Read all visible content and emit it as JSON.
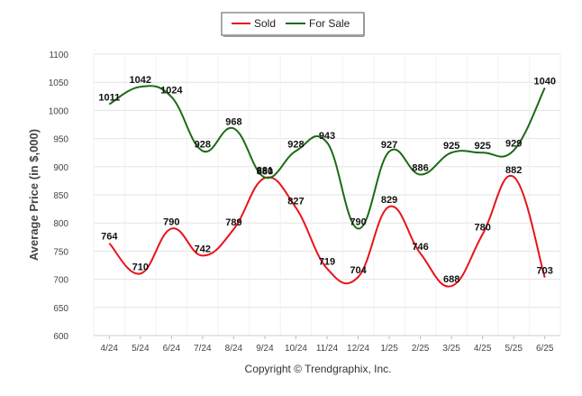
{
  "chart_data": {
    "type": "line",
    "title": "",
    "xlabel": "",
    "ylabel": "Average Price (in $,000)",
    "categories": [
      "4/24",
      "5/24",
      "6/24",
      "7/24",
      "8/24",
      "9/24",
      "10/24",
      "11/24",
      "12/24",
      "1/25",
      "2/25",
      "3/25",
      "4/25",
      "5/25",
      "6/25"
    ],
    "series": [
      {
        "name": "Sold",
        "color": "#e8141b",
        "values": [
          764,
          710,
          790,
          742,
          789,
          880,
          827,
          719,
          704,
          829,
          746,
          688,
          780,
          882,
          703
        ]
      },
      {
        "name": "For Sale",
        "color": "#1a6b12",
        "values": [
          1011,
          1042,
          1024,
          928,
          968,
          881,
          928,
          943,
          790,
          927,
          886,
          925,
          925,
          929,
          1040
        ]
      }
    ],
    "ylim": [
      600,
      1100
    ],
    "yticks": [
      600,
      650,
      700,
      750,
      800,
      850,
      900,
      950,
      1000,
      1050,
      1100
    ],
    "grid": true,
    "legend_position": "top-center",
    "smooth": true
  },
  "footer": {
    "copyright": "Copyright © Trendgraphix, Inc."
  }
}
